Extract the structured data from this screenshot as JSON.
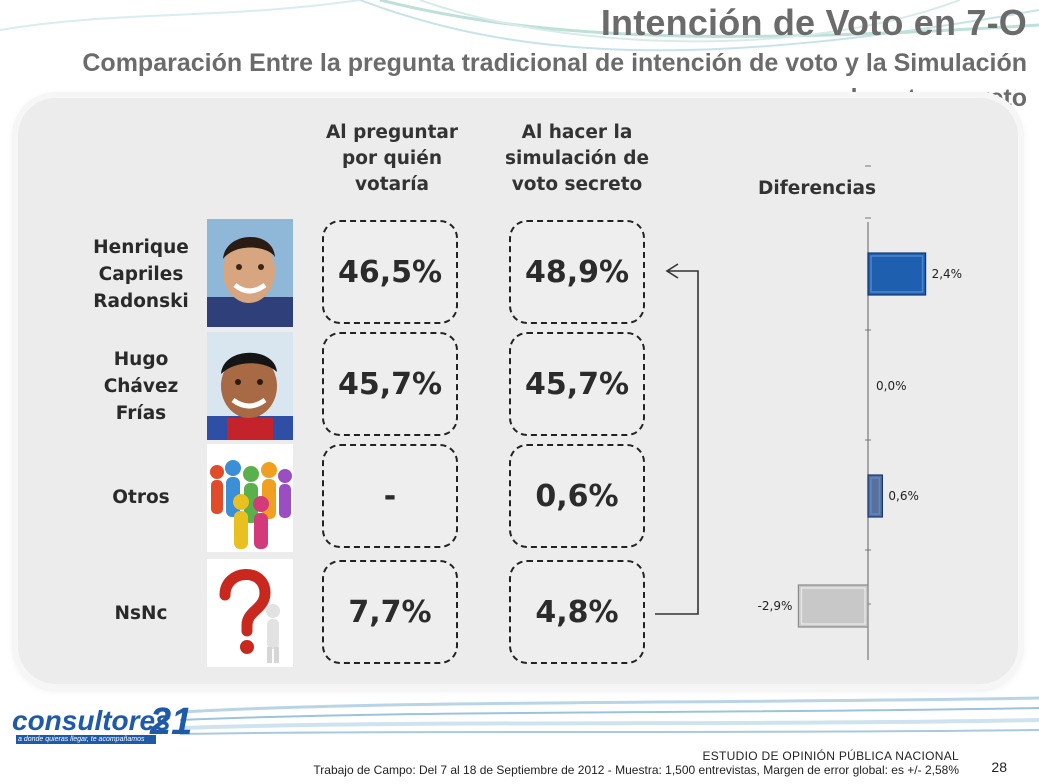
{
  "title": "Intención de Voto en 7-O",
  "subtitle": "Comparación Entre la pregunta tradicional de intención de voto y la Simulación de voto secreto",
  "columns": {
    "traditional": "Al preguntar por quién votaría",
    "secret": "Al hacer la simulación de voto secreto",
    "differences": "Diferencias"
  },
  "rows": [
    {
      "name_lines": [
        "Henrique",
        "Capriles",
        "Radonski"
      ],
      "photo": "capriles-photo",
      "traditional": "46,5%",
      "secret": "48,9%"
    },
    {
      "name_lines": [
        "Hugo",
        "Chávez",
        "Frías"
      ],
      "photo": "chavez-photo",
      "traditional": "45,7%",
      "secret": "45,7%"
    },
    {
      "name_lines": [
        "Otros"
      ],
      "photo": "crowd-figures-image",
      "traditional": "-",
      "secret": "0,6%"
    },
    {
      "name_lines": [
        "NsNc"
      ],
      "photo": "question-mark-figure-image",
      "traditional": "7,7%",
      "secret": "4,8%"
    }
  ],
  "chart_data": {
    "type": "bar",
    "orientation": "horizontal",
    "title": "Diferencias",
    "categories": [
      "Henrique Capriles Radonski",
      "Hugo Chávez Frías",
      "Otros",
      "NsNc"
    ],
    "values": [
      2.4,
      0.0,
      0.6,
      -2.9
    ],
    "data_labels": [
      "2,4%",
      "0,0%",
      "0,6%",
      "-2,9%"
    ],
    "colors": [
      "#1f5fb0",
      "#1f5fb0",
      "#5a6f9a",
      "#c8c8c8"
    ],
    "grid": false,
    "legend": "none"
  },
  "logo": {
    "name": "consultores",
    "number": "21",
    "tagline": "a donde quieras llegar, te acompañamos"
  },
  "footer": {
    "study": "ESTUDIO DE OPINIÓN PÚBLICA NACIONAL",
    "details": "Trabajo de Campo: Del 7 al 18 de Septiembre de 2012 - Muestra: 1,500 entrevistas, Margen de error global: es +/- 2,58%",
    "page": "28"
  },
  "colors": {
    "title": "#6b6b6b",
    "panel": "#ececec",
    "positive_bar": "#1f5fb0",
    "negative_bar": "#c8c8c8",
    "logo_blue": "#1e5aa8"
  }
}
